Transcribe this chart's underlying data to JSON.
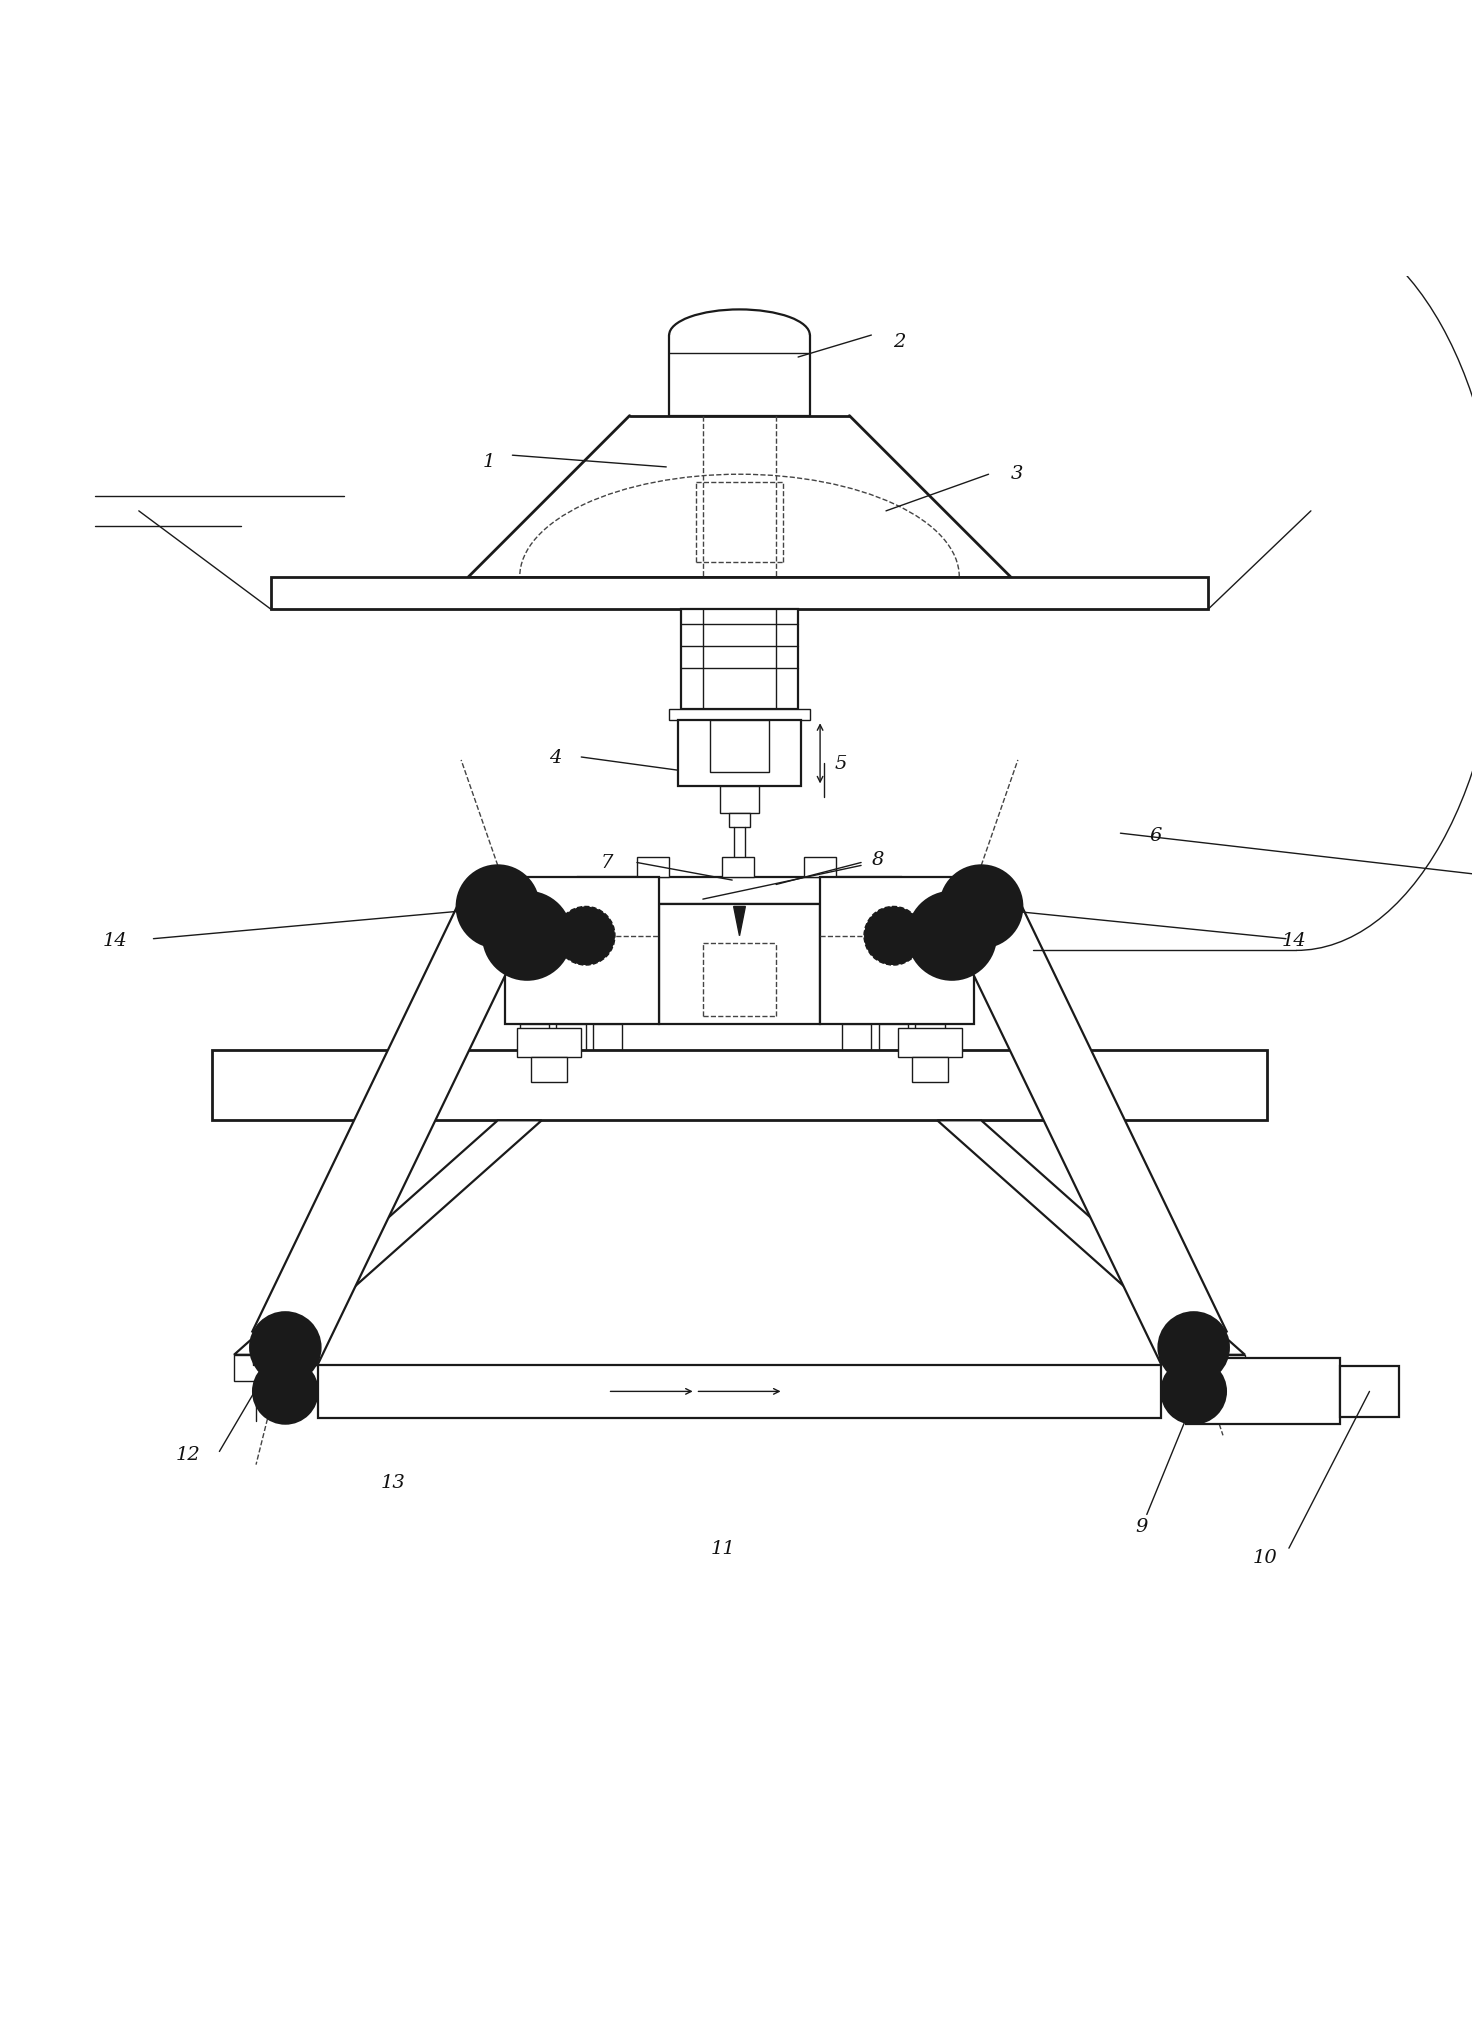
{
  "bg_color": "#ffffff",
  "line_color": "#1a1a1a",
  "dashed_color": "#444444",
  "label_color": "#111111",
  "figsize": [
    14.79,
    20.18
  ],
  "dpi": 100
}
